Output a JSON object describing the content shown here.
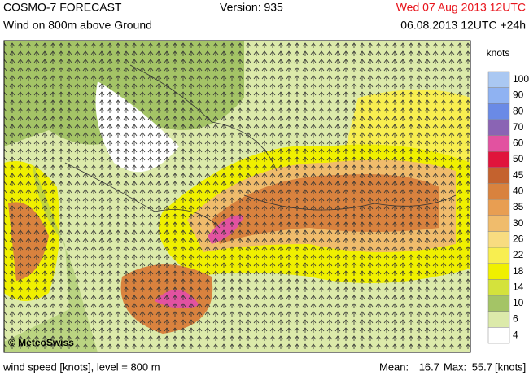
{
  "header": {
    "product": "COSMO-7 FORECAST",
    "field": "Wind on 800m above Ground",
    "version": "Version: 935",
    "valid_time": "Wed 07 Aug 2013 12UTC",
    "run_time": "06.08.2013 12UTC +24h"
  },
  "map": {
    "copyright": "© MeteoSwiss"
  },
  "legend": {
    "title": "knots",
    "levels": [
      {
        "label": "100",
        "color": "#aac8f2"
      },
      {
        "label": "90",
        "color": "#8fb2f2"
      },
      {
        "label": "80",
        "color": "#6a8ae6"
      },
      {
        "label": "70",
        "color": "#8a64b4"
      },
      {
        "label": "60",
        "color": "#e252a0"
      },
      {
        "label": "50",
        "color": "#e0143c"
      },
      {
        "label": "45",
        "color": "#c4622e"
      },
      {
        "label": "40",
        "color": "#d9823e"
      },
      {
        "label": "35",
        "color": "#e89e52"
      },
      {
        "label": "30",
        "color": "#f0bc6c"
      },
      {
        "label": "26",
        "color": "#f8dc80"
      },
      {
        "label": "22",
        "color": "#f8ee50"
      },
      {
        "label": "18",
        "color": "#f0f000"
      },
      {
        "label": "14",
        "color": "#d4e23c"
      },
      {
        "label": "10",
        "color": "#a4c466"
      },
      {
        "label": "6",
        "color": "#dceaaa"
      },
      {
        "label": "4",
        "color": "#ffffff"
      }
    ]
  },
  "footer": {
    "description": "wind speed [knots], level = 800 m",
    "mean_label": "Mean:",
    "mean": 16.7,
    "max_label": "Max:",
    "max": 55.7,
    "unit": "[knots]"
  }
}
